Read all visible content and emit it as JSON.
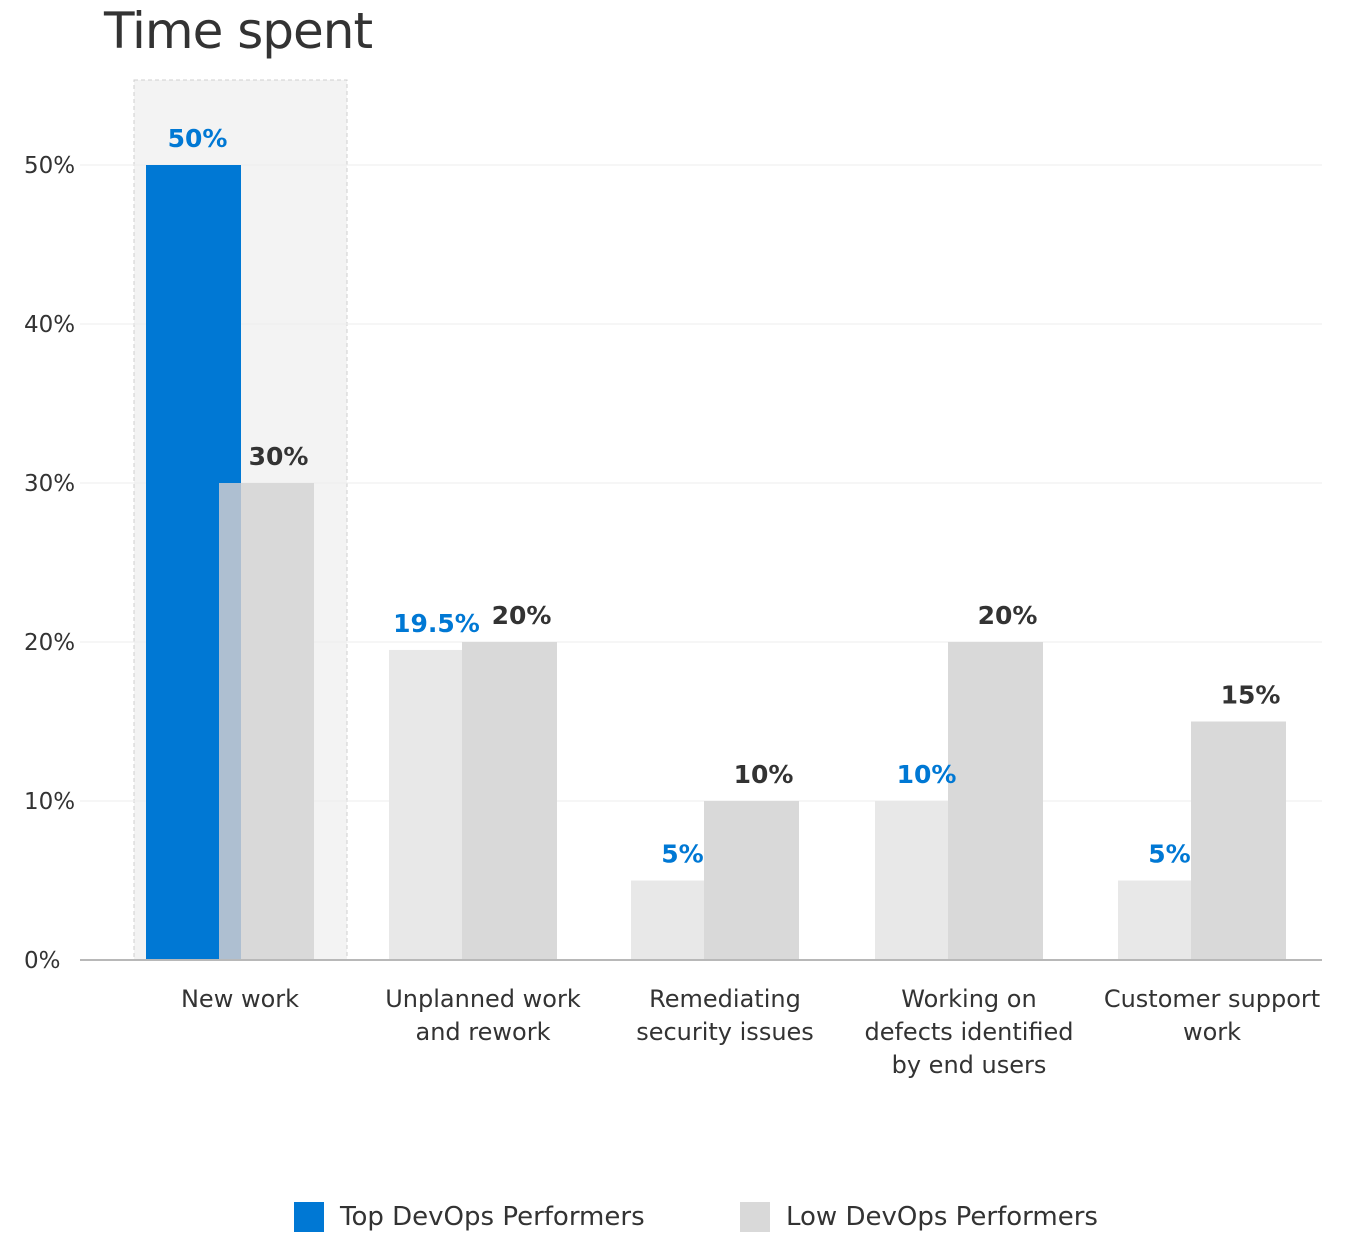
{
  "chart_data": {
    "type": "bar",
    "title": "Time spent",
    "xlabel": "",
    "ylabel": "",
    "ylim": [
      0,
      50
    ],
    "yticks": [
      "0%",
      "10%",
      "20%",
      "30%",
      "40%",
      "50%"
    ],
    "ytick_values": [
      0,
      10,
      20,
      30,
      40,
      50
    ],
    "grid": true,
    "highlighted_category": "New work",
    "categories": [
      [
        "New work"
      ],
      [
        "Unplanned work",
        "and rework"
      ],
      [
        "Remediating",
        "security issues"
      ],
      [
        "Working on",
        "defects identified",
        "by end users"
      ],
      [
        "Customer support",
        "work"
      ]
    ],
    "series": [
      {
        "name": "Top DevOps Performers",
        "values": [
          50,
          19.5,
          5,
          10,
          5
        ],
        "labels": [
          "50%",
          "19.5%",
          "5%",
          "10%",
          "5%"
        ],
        "color": "#0078d4",
        "muted_color": "#e8e8e8",
        "label_color": "#0078d4"
      },
      {
        "name": "Low DevOps Performers",
        "values": [
          30,
          20,
          10,
          20,
          15
        ],
        "labels": [
          "30%",
          "20%",
          "10%",
          "20%",
          "15%"
        ],
        "color": "#d9d9d9",
        "label_color": "#333333"
      }
    ],
    "legend_position": "bottom"
  }
}
